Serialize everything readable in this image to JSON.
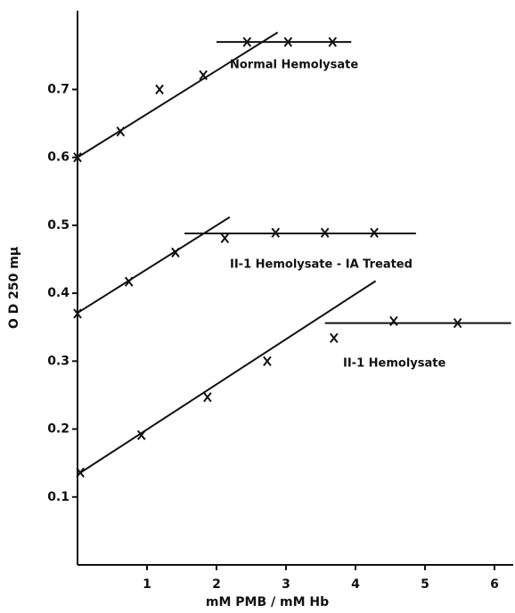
{
  "chart_data": {
    "type": "scatter",
    "xlabel": "mM PMB / mM Hb",
    "ylabel": "O D 250 mμ",
    "xlim": [
      0,
      6.27
    ],
    "ylim": [
      0,
      0.816
    ],
    "xticks": [
      1,
      2,
      3,
      4,
      5,
      6
    ],
    "yticks": [
      0.1,
      0.2,
      0.3,
      0.4,
      0.5,
      0.6,
      0.7
    ],
    "color": "#111111",
    "series": [
      {
        "name": "Normal Hemolysate",
        "x": [
          0,
          0.62,
          1.18,
          1.81,
          2.44,
          3.03,
          3.67
        ],
        "y": [
          0.6,
          0.638,
          0.7,
          0.721,
          0.77,
          0.77,
          0.77
        ],
        "fits": [
          {
            "x": [
              0,
              2.88
            ],
            "y": [
              0.6,
              0.784
            ]
          },
          {
            "x": [
              2.0,
              3.94
            ],
            "y": [
              0.77,
              0.77
            ]
          }
        ]
      },
      {
        "name": "II-1 Hemolysate - IA Treated",
        "x": [
          0,
          0.74,
          1.41,
          2.12,
          2.85,
          3.56,
          4.27
        ],
        "y": [
          0.37,
          0.417,
          0.46,
          0.481,
          0.489,
          0.489,
          0.489
        ],
        "fits": [
          {
            "x": [
              0,
              2.19
            ],
            "y": [
              0.371,
              0.512
            ]
          },
          {
            "x": [
              1.54,
              4.87
            ],
            "y": [
              0.488,
              0.488
            ]
          }
        ]
      },
      {
        "name": "II-1 Hemolysate",
        "x": [
          0.04,
          0.92,
          1.87,
          2.73,
          3.69,
          4.55,
          5.47
        ],
        "y": [
          0.136,
          0.191,
          0.247,
          0.3,
          0.334,
          0.359,
          0.356
        ],
        "fits": [
          {
            "x": [
              0,
              4.29
            ],
            "y": [
              0.133,
              0.418
            ]
          },
          {
            "x": [
              3.56,
              6.24
            ],
            "y": [
              0.356,
              0.356
            ]
          }
        ]
      }
    ]
  }
}
